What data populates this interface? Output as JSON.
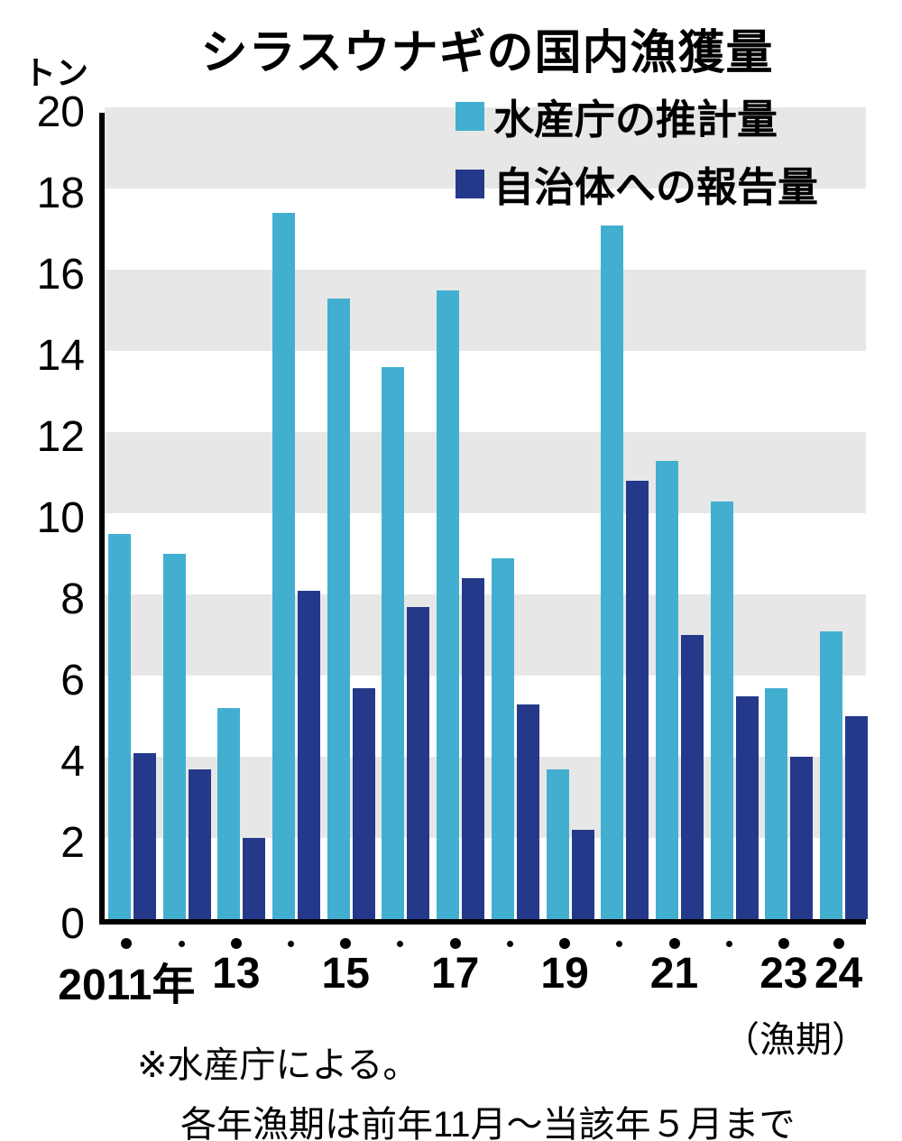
{
  "title": "シラスウナギの国内漁獲量",
  "unit_label": "トン",
  "legend": [
    {
      "label": "水産庁の推計量",
      "color": "#43afd0"
    },
    {
      "label": "自治体への報告量",
      "color": "#24398a"
    }
  ],
  "x_axis_note": "（漁期）",
  "footnote": {
    "line1": "※水産庁による。",
    "line2": "各年漁期は前年11月～当該年５月まで"
  },
  "chart_data": {
    "type": "bar",
    "title": "シラスウナギの国内漁獲量",
    "ylabel": "トン",
    "ylim": [
      0,
      20
    ],
    "ytick_step": 2,
    "grid_bands": "alternating gray every 2 units",
    "legend_position": "top-right",
    "categories": [
      "2011",
      "2012",
      "2013",
      "2014",
      "2015",
      "2016",
      "2017",
      "2018",
      "2019",
      "2020",
      "2021",
      "2022",
      "2023",
      "2024"
    ],
    "x_tick_labels": [
      {
        "index": 0,
        "label": "2011年"
      },
      {
        "index": 2,
        "label": "13"
      },
      {
        "index": 4,
        "label": "15"
      },
      {
        "index": 6,
        "label": "17"
      },
      {
        "index": 8,
        "label": "19"
      },
      {
        "index": 10,
        "label": "21"
      },
      {
        "index": 12,
        "label": "23"
      },
      {
        "index": 13,
        "label": "24"
      }
    ],
    "series": [
      {
        "name": "水産庁の推計量",
        "color": "#43afd0",
        "values": [
          9.5,
          9.0,
          5.2,
          17.4,
          15.3,
          13.6,
          15.5,
          8.9,
          3.7,
          17.1,
          11.3,
          10.3,
          5.7,
          7.1
        ]
      },
      {
        "name": "自治体への報告量",
        "color": "#24398a",
        "values": [
          4.1,
          3.7,
          2.0,
          8.1,
          5.7,
          7.7,
          8.4,
          5.3,
          2.2,
          10.8,
          7.0,
          5.5,
          4.0,
          5.0
        ]
      }
    ]
  }
}
